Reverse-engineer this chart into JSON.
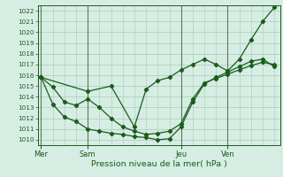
{
  "xlabel": "Pression niveau de la mer( hPa )",
  "ylim": [
    1009.5,
    1022.5
  ],
  "yticks": [
    1010,
    1011,
    1012,
    1013,
    1014,
    1015,
    1016,
    1017,
    1018,
    1019,
    1020,
    1021,
    1022
  ],
  "background_color": "#d6ede4",
  "grid_color": "#aacab8",
  "line_color": "#1a5c1a",
  "day_labels": [
    "Mer",
    "Sam",
    "Jeu",
    "Ven"
  ],
  "day_positions": [
    0,
    16,
    48,
    64
  ],
  "xlim": [
    -1,
    82
  ],
  "line1_x": [
    0,
    4,
    8,
    12,
    16,
    20,
    24,
    28,
    32,
    36,
    40,
    44,
    48,
    52,
    56,
    60,
    64,
    68,
    72,
    76,
    80
  ],
  "line1_y": [
    1015.8,
    1014.9,
    1013.5,
    1013.2,
    1013.8,
    1013.0,
    1012.0,
    1011.2,
    1010.8,
    1010.5,
    1010.6,
    1010.8,
    1011.5,
    1013.8,
    1015.3,
    1015.7,
    1016.1,
    1016.5,
    1016.9,
    1017.2,
    1017.0
  ],
  "line2_x": [
    0,
    4,
    8,
    12,
    16,
    20,
    24,
    28,
    32,
    36,
    40,
    44,
    48,
    52,
    56,
    60,
    64,
    68,
    72,
    76,
    80
  ],
  "line2_y": [
    1015.8,
    1013.3,
    1012.1,
    1011.7,
    1011.0,
    1010.8,
    1010.6,
    1010.5,
    1010.3,
    1010.2,
    1010.0,
    1010.1,
    1011.2,
    1013.5,
    1015.2,
    1015.8,
    1016.3,
    1016.8,
    1017.3,
    1017.5,
    1016.8
  ],
  "line3_x": [
    0,
    16,
    24,
    32,
    36,
    40,
    44,
    48,
    52,
    56,
    60,
    64,
    68,
    72,
    76,
    80
  ],
  "line3_y": [
    1015.8,
    1014.5,
    1015.0,
    1011.2,
    1014.7,
    1015.5,
    1015.8,
    1016.5,
    1017.0,
    1017.5,
    1017.0,
    1016.4,
    1017.5,
    1019.3,
    1021.0,
    1022.3
  ]
}
